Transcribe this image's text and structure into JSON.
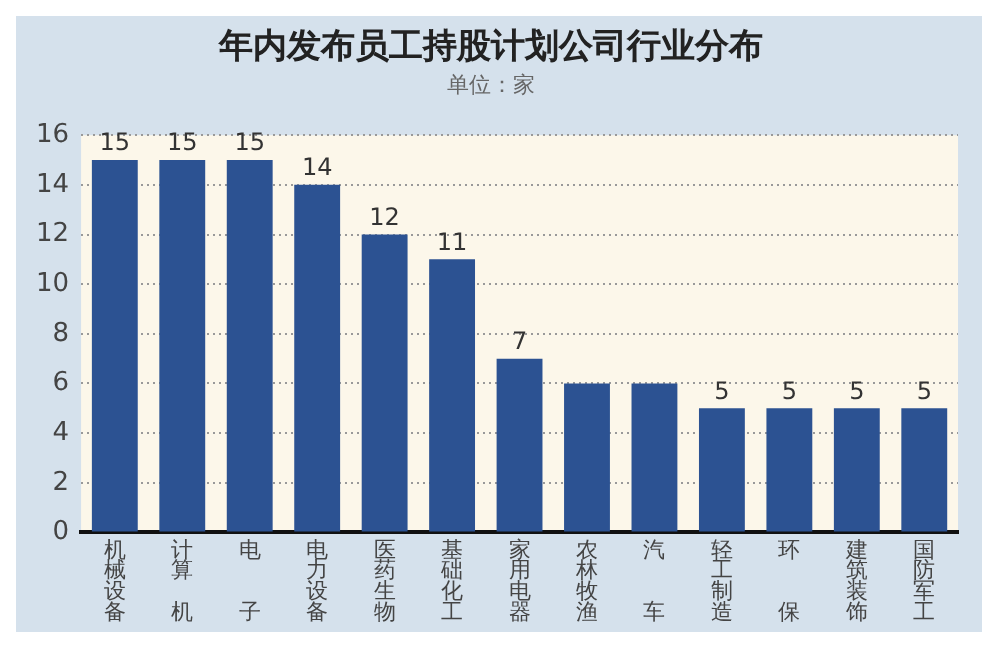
{
  "chart_data": {
    "type": "bar",
    "title": "年内发布员工持股计划公司行业分布",
    "subtitle": "单位：家",
    "categories": [
      "机械设备",
      "计算机",
      "电子",
      "电力设备",
      "医药生物",
      "基础化工",
      "家用电器",
      "农林牧渔",
      "汽车",
      "轻工制造",
      "环保",
      "建筑装饰",
      "国防军工"
    ],
    "values": [
      15,
      15,
      15,
      14,
      12,
      11,
      7,
      6,
      6,
      5,
      5,
      5,
      5
    ],
    "value_labels": [
      "15",
      "15",
      "15",
      "14",
      "12",
      "11",
      "7",
      null,
      null,
      "5",
      "5",
      "5",
      "5"
    ],
    "color": "#2c5292",
    "ylim": [
      0,
      16
    ],
    "yticks": [
      0,
      2,
      4,
      6,
      8,
      10,
      12,
      14,
      16
    ],
    "grid": "y"
  }
}
